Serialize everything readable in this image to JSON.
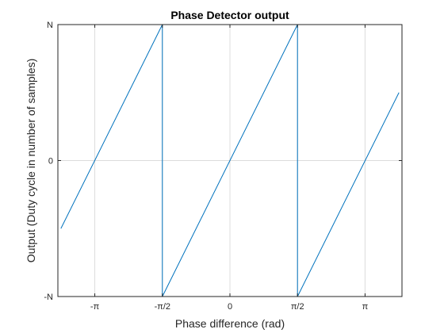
{
  "chart_data": {
    "type": "line",
    "title": "Phase Detector output",
    "xlabel": "Phase difference (rad)",
    "ylabel": "Output (Duty cycle in number of samples)",
    "xlim": [
      -4.0,
      4.0
    ],
    "ylim": [
      -1.0,
      1.0
    ],
    "xticks": [
      {
        "value": -3.1416,
        "label": "-π"
      },
      {
        "value": -1.5708,
        "label": "-π/2"
      },
      {
        "value": 0,
        "label": "0"
      },
      {
        "value": 1.5708,
        "label": "π/2"
      },
      {
        "value": 3.1416,
        "label": "π"
      }
    ],
    "yticks": [
      {
        "value": -1,
        "label": "-N"
      },
      {
        "value": 0,
        "label": "0"
      },
      {
        "value": 1,
        "label": "N"
      }
    ],
    "grid": true,
    "colors": {
      "series": "#0072bd"
    },
    "series": [
      {
        "x": [
          -3.93,
          -1.5708,
          -1.5708,
          1.5708,
          1.5708,
          3.93
        ],
        "y": [
          -0.5,
          1.0,
          -1.0,
          1.0,
          -1.0,
          0.5
        ]
      }
    ]
  }
}
